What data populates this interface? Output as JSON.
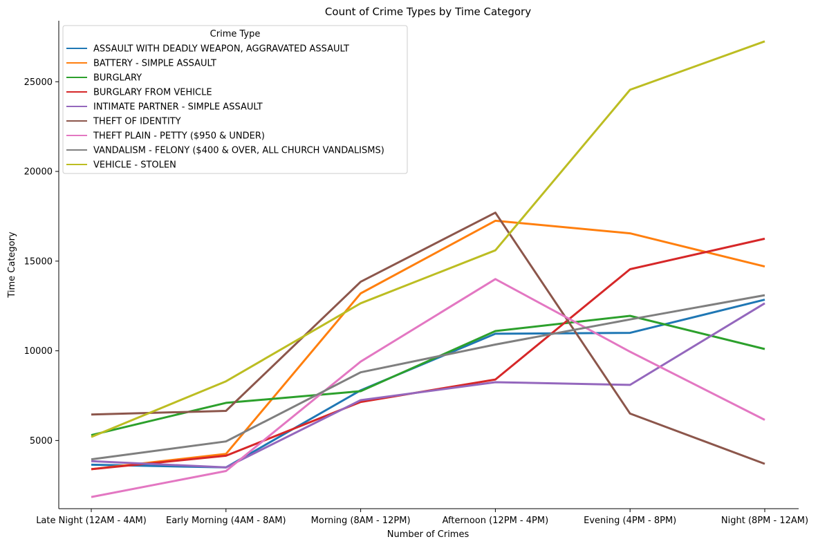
{
  "chart_data": {
    "type": "line",
    "title": "Count of Crime Types by Time Category",
    "xlabel": "Number of Crimes",
    "ylabel": "Time Category",
    "categories": [
      "Late Night (12AM - 4AM)",
      "Early Morning (4AM - 8AM)",
      "Morning (8AM - 12PM)",
      "Afternoon (12PM - 4PM)",
      "Evening (4PM - 8PM)",
      "Night (8PM - 12AM)"
    ],
    "ylim": [
      1200,
      28400
    ],
    "yticks": [
      5000,
      10000,
      15000,
      20000,
      25000
    ],
    "grid": false,
    "legend": {
      "title": "Crime Type",
      "placement": "top-left"
    },
    "series": [
      {
        "name": "ASSAULT WITH DEADLY WEAPON, AGGRAVATED ASSAULT",
        "color": "#1f77b4",
        "values": [
          3650,
          3500,
          7800,
          10950,
          11000,
          12850
        ]
      },
      {
        "name": "BATTERY - SIMPLE ASSAULT",
        "color": "#ff7f0e",
        "values": [
          3400,
          4250,
          13200,
          17250,
          16550,
          14700
        ]
      },
      {
        "name": "BURGLARY",
        "color": "#2ca02c",
        "values": [
          5300,
          7100,
          7750,
          11100,
          11950,
          10100
        ]
      },
      {
        "name": "BURGLARY FROM VEHICLE",
        "color": "#d62728",
        "values": [
          3400,
          4150,
          7150,
          8400,
          14550,
          16250
        ]
      },
      {
        "name": "INTIMATE PARTNER - SIMPLE ASSAULT",
        "color": "#9467bd",
        "values": [
          3850,
          3500,
          7250,
          8250,
          8100,
          12650
        ]
      },
      {
        "name": "THEFT OF IDENTITY",
        "color": "#8c564b",
        "values": [
          6450,
          6650,
          13850,
          17700,
          6500,
          3700
        ]
      },
      {
        "name": "THEFT PLAIN - PETTY ($950 & UNDER)",
        "color": "#e377c2",
        "values": [
          1850,
          3300,
          9400,
          14000,
          9950,
          6150
        ]
      },
      {
        "name": "VANDALISM - FELONY ($400 & OVER, ALL CHURCH VANDALISMS)",
        "color": "#7f7f7f",
        "values": [
          3950,
          4950,
          8800,
          10350,
          11750,
          13100
        ]
      },
      {
        "name": "VEHICLE - STOLEN",
        "color": "#bcbd22",
        "values": [
          5200,
          8300,
          12650,
          15600,
          24550,
          27250
        ]
      }
    ]
  }
}
